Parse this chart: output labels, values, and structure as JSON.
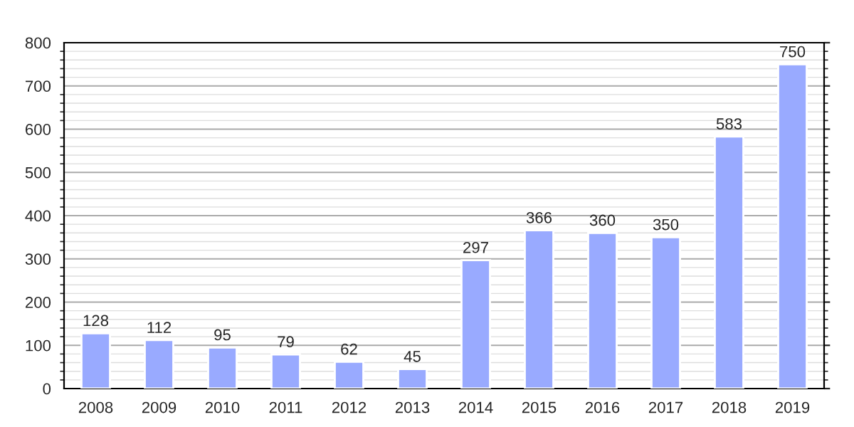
{
  "chart_data": {
    "type": "bar",
    "categories": [
      "2008",
      "2009",
      "2010",
      "2011",
      "2012",
      "2013",
      "2014",
      "2015",
      "2016",
      "2017",
      "2018",
      "2019"
    ],
    "values": [
      128,
      112,
      95,
      79,
      62,
      45,
      297,
      366,
      360,
      350,
      583,
      750
    ],
    "color": "#99aaff",
    "ylim": [
      0,
      800
    ],
    "yticks": [
      0,
      100,
      200,
      300,
      400,
      500,
      600,
      700,
      800
    ],
    "grid": "y",
    "data_labels": true
  }
}
